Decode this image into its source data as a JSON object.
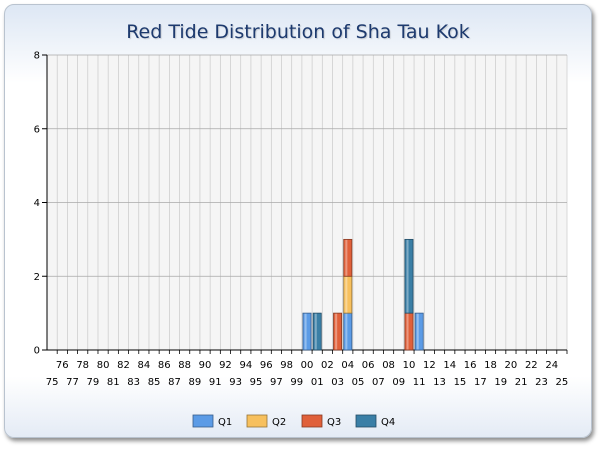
{
  "chart_data": {
    "type": "bar",
    "stacked": true,
    "title": "Red Tide Distribution of Sha Tau Kok",
    "xlabel": "",
    "ylabel": "",
    "ylim": [
      0,
      8
    ],
    "yticks": [
      0,
      2,
      4,
      6,
      8
    ],
    "grid": true,
    "legend_position": "bottom",
    "categories": [
      "75",
      "76",
      "77",
      "78",
      "79",
      "80",
      "81",
      "82",
      "83",
      "84",
      "85",
      "86",
      "87",
      "88",
      "89",
      "90",
      "91",
      "92",
      "93",
      "94",
      "95",
      "96",
      "97",
      "98",
      "99",
      "00",
      "01",
      "02",
      "03",
      "04",
      "05",
      "06",
      "07",
      "08",
      "09",
      "10",
      "11",
      "12",
      "13",
      "14",
      "15",
      "16",
      "17",
      "18",
      "19",
      "20",
      "21",
      "22",
      "23",
      "24",
      "25"
    ],
    "series": [
      {
        "name": "Q1",
        "color": "#5b9be6",
        "values": [
          0,
          0,
          0,
          0,
          0,
          0,
          0,
          0,
          0,
          0,
          0,
          0,
          0,
          0,
          0,
          0,
          0,
          0,
          0,
          0,
          0,
          0,
          0,
          0,
          0,
          1,
          0,
          0,
          0,
          1,
          0,
          0,
          0,
          0,
          0,
          0,
          1,
          0,
          0,
          0,
          0,
          0,
          0,
          0,
          0,
          0,
          0,
          0,
          0,
          0,
          0
        ]
      },
      {
        "name": "Q2",
        "color": "#f7c05d",
        "values": [
          0,
          0,
          0,
          0,
          0,
          0,
          0,
          0,
          0,
          0,
          0,
          0,
          0,
          0,
          0,
          0,
          0,
          0,
          0,
          0,
          0,
          0,
          0,
          0,
          0,
          0,
          0,
          0,
          0,
          1,
          0,
          0,
          0,
          0,
          0,
          0,
          0,
          0,
          0,
          0,
          0,
          0,
          0,
          0,
          0,
          0,
          0,
          0,
          0,
          0,
          0
        ]
      },
      {
        "name": "Q3",
        "color": "#e0603a",
        "values": [
          0,
          0,
          0,
          0,
          0,
          0,
          0,
          0,
          0,
          0,
          0,
          0,
          0,
          0,
          0,
          0,
          0,
          0,
          0,
          0,
          0,
          0,
          0,
          0,
          0,
          0,
          0,
          0,
          1,
          1,
          0,
          0,
          0,
          0,
          0,
          1,
          0,
          0,
          0,
          0,
          0,
          0,
          0,
          0,
          0,
          0,
          0,
          0,
          0,
          0,
          0
        ]
      },
      {
        "name": "Q4",
        "color": "#3a7fa6",
        "values": [
          0,
          0,
          0,
          0,
          0,
          0,
          0,
          0,
          0,
          0,
          0,
          0,
          0,
          0,
          0,
          0,
          0,
          0,
          0,
          0,
          0,
          0,
          0,
          0,
          0,
          0,
          1,
          0,
          0,
          0,
          0,
          0,
          0,
          0,
          0,
          2,
          0,
          0,
          0,
          0,
          0,
          0,
          0,
          0,
          0,
          0,
          0,
          0,
          0,
          0,
          0
        ]
      }
    ]
  }
}
